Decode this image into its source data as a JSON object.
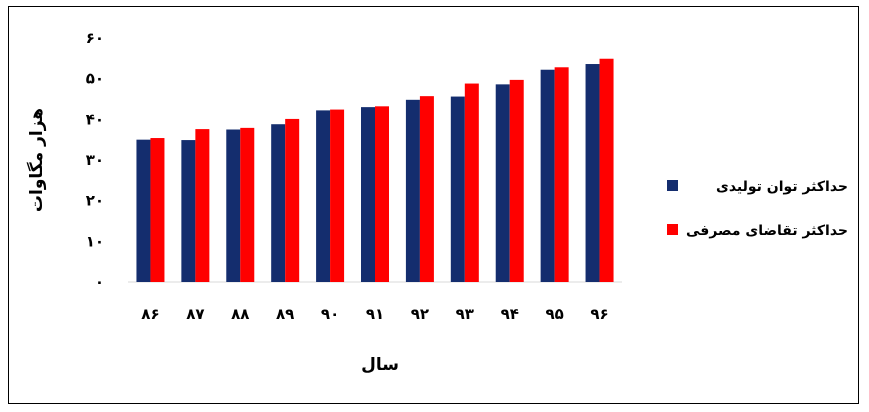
{
  "chart_data": {
    "type": "bar",
    "categories": [
      "۸۶",
      "۸۷",
      "۸۸",
      "۸۹",
      "۹۰",
      "۹۱",
      "۹۲",
      "۹۳",
      "۹۴",
      "۹۵",
      "۹۶"
    ],
    "series": [
      {
        "name": "حداکثر توان تولیدی",
        "color": "#142d6e",
        "values": [
          35.0,
          34.9,
          37.5,
          38.8,
          42.2,
          43.0,
          44.8,
          45.6,
          48.6,
          52.2,
          53.6
        ]
      },
      {
        "name": "حداکثر تقاضای مصرفی",
        "color": "#ff0000",
        "values": [
          35.4,
          37.6,
          37.9,
          40.1,
          42.4,
          43.2,
          45.7,
          48.8,
          49.7,
          52.8,
          54.9
        ]
      }
    ],
    "xlabel": "سال",
    "ylabel": "هزار مگاوات",
    "ylim": [
      0,
      60
    ],
    "yticks": [
      0,
      10,
      20,
      30,
      40,
      50,
      60
    ],
    "ytick_labels": [
      "۰",
      "۱۰",
      "۲۰",
      "۳۰",
      "۴۰",
      "۵۰",
      "۶۰"
    ],
    "grid": false,
    "legend_position": "right"
  }
}
